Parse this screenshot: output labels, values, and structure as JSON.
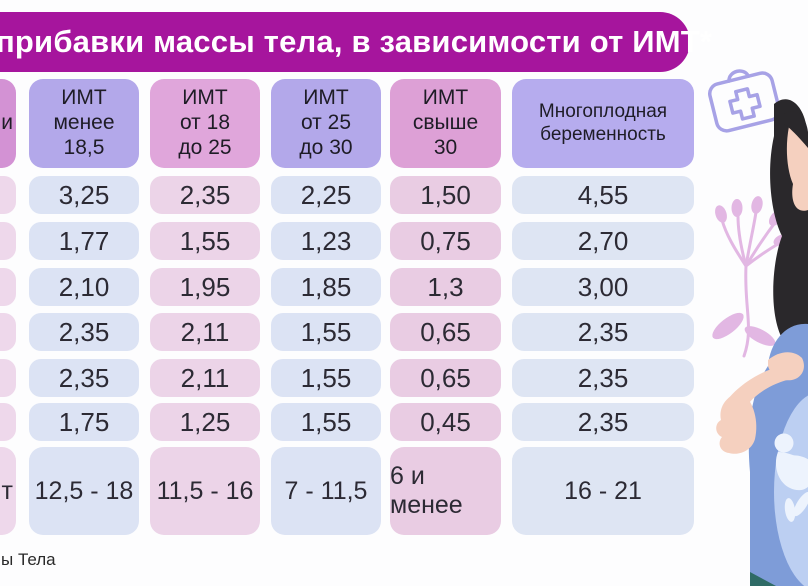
{
  "title": {
    "text": "прибавки массы тела, в зависимости от ИМТ*"
  },
  "footnote": {
    "text": "ы Тела"
  },
  "colors": {
    "banner": "#a6159d",
    "header_lavender": "#b3a8ea",
    "header_lavender_light": "#b6acee",
    "header_pink": "#e0a6db",
    "header_pink_deep": "#dda0d6",
    "header_purple_cut": "#d392d4",
    "cell_blue": "#dce3f4",
    "cell_blue_light": "#dee5f3",
    "cell_pink": "#ecd4e8",
    "cell_pink_deep": "#e9cce3",
    "cell_pink_cut": "#eed8eb",
    "value_text": "#2c2a34",
    "illustration_outline": "#a7a2e6",
    "flower_pink": "#e2b7e3",
    "hair_black": "#2a282b",
    "skin": "#f5d0bf",
    "dress_blue": "#7e9cd8",
    "belly_inner": "#bccff2",
    "fetus_white": "#edf3fd",
    "accent_teal": "#2f6b66"
  },
  "table": {
    "columns": [
      {
        "key": "pregnancy-period",
        "cut": true,
        "header": "и",
        "header_color": "header_purple_cut",
        "cell_color": "cell_pink_cut",
        "values": [
          "",
          "",
          "",
          "",
          "",
          ""
        ],
        "total": "т"
      },
      {
        "key": "bmi-under-18-5",
        "header": "ИМТ\nменее\n18,5",
        "header_color": "header_lavender",
        "cell_color": "cell_blue",
        "values": [
          "3,25",
          "1,77",
          "2,10",
          "2,35",
          "2,35",
          "1,75"
        ],
        "total": "12,5 - 18"
      },
      {
        "key": "bmi-18-25",
        "header": "ИМТ\nот 18\nдо 25",
        "header_color": "header_pink",
        "cell_color": "cell_pink",
        "values": [
          "2,35",
          "1,55",
          "1,95",
          "2,11",
          "2,11",
          "1,25"
        ],
        "total": "11,5 - 16"
      },
      {
        "key": "bmi-25-30",
        "header": "ИМТ\nот 25\nдо 30",
        "header_color": "header_lavender",
        "cell_color": "cell_blue",
        "values": [
          "2,25",
          "1,23",
          "1,85",
          "1,55",
          "1,55",
          "1,55"
        ],
        "total": "7 - 11,5"
      },
      {
        "key": "bmi-over-30",
        "header": "ИМТ\nсвыше\n30",
        "header_color": "header_pink_deep",
        "cell_color": "cell_pink_deep",
        "values": [
          "1,50",
          "0,75",
          "1,3",
          "0,65",
          "0,65",
          "0,45"
        ],
        "total": "6 и менее"
      },
      {
        "key": "multiple-pregnancy",
        "header": "Многоплодная\nбеременность",
        "header_color": "header_lavender_light",
        "cell_color": "cell_blue_light",
        "values": [
          "4,55",
          "2,70",
          "3,00",
          "2,35",
          "2,35",
          "2,35"
        ],
        "total": "16 - 21"
      }
    ]
  },
  "illustration": {
    "items": [
      "medical-kit-icon",
      "flower-illustration",
      "pregnant-woman-illustration"
    ]
  },
  "chart_data": {
    "type": "table",
    "title": "прибавки массы тела, в зависимости от ИМТ*",
    "columns": [
      "ИМТ менее 18,5",
      "ИМТ от 18 до 25",
      "ИМТ от 25 до 30",
      "ИМТ свыше 30",
      "Многоплодная беременность"
    ],
    "rows": [
      [
        3.25,
        2.35,
        2.25,
        1.5,
        4.55
      ],
      [
        1.77,
        1.55,
        1.23,
        0.75,
        2.7
      ],
      [
        2.1,
        1.95,
        1.85,
        1.3,
        3.0
      ],
      [
        2.35,
        2.11,
        1.55,
        0.65,
        2.35
      ],
      [
        2.35,
        2.11,
        1.55,
        0.65,
        2.35
      ],
      [
        1.75,
        1.25,
        1.55,
        0.45,
        2.35
      ]
    ],
    "total_row": [
      "12,5 - 18",
      "11,5 - 16",
      "7 - 11,5",
      "6 и менее",
      "16 - 21"
    ],
    "footnote": "ы Тела"
  }
}
